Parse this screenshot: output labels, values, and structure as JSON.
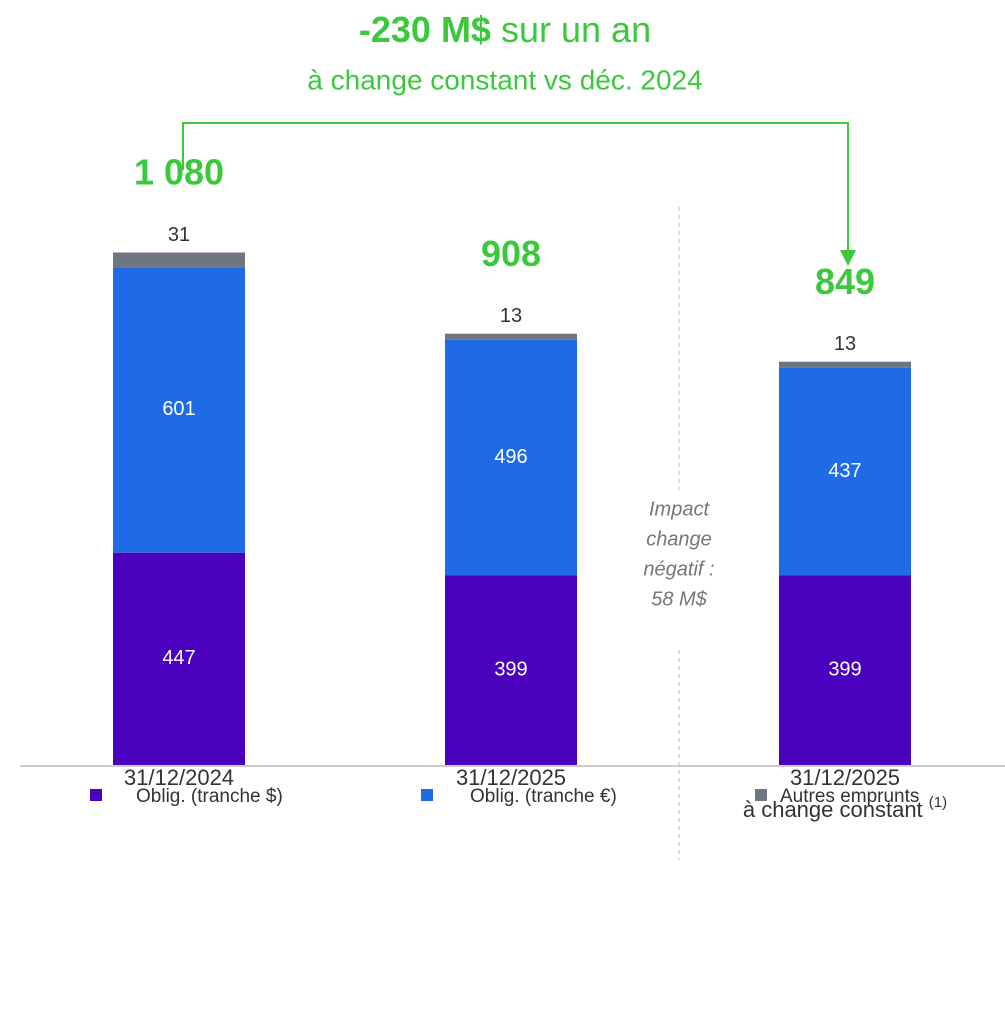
{
  "chart_data": {
    "type": "stacked_bar",
    "title_bold": "-230 M$",
    "title_rest": "sur un an",
    "subtitle": "à change constant vs déc. 2024",
    "categories": [
      "31/12/2024",
      "31/12/2025",
      "31/12/2025"
    ],
    "category_note": "à change constant",
    "category_note_mark": "(1)",
    "series": [
      {
        "name": "Oblig. (tranche $)",
        "color": "#4B00BE",
        "values": [
          447,
          399,
          399
        ]
      },
      {
        "name": "Oblig. (tranche €)",
        "color": "#1F6BE6",
        "values": [
          601,
          496,
          437
        ]
      },
      {
        "name": "Autres emprunts",
        "color": "#6E7681",
        "values": [
          31,
          13,
          13
        ]
      }
    ],
    "totals": {
      "values": [
        1080,
        908,
        849
      ],
      "value_labels": [
        "1 080",
        "908",
        "849"
      ],
      "color": "#3CC83C"
    },
    "annotation": [
      "Impact",
      "change",
      "négatif :",
      "58 M$"
    ],
    "ylim": [
      0,
      1120
    ]
  }
}
